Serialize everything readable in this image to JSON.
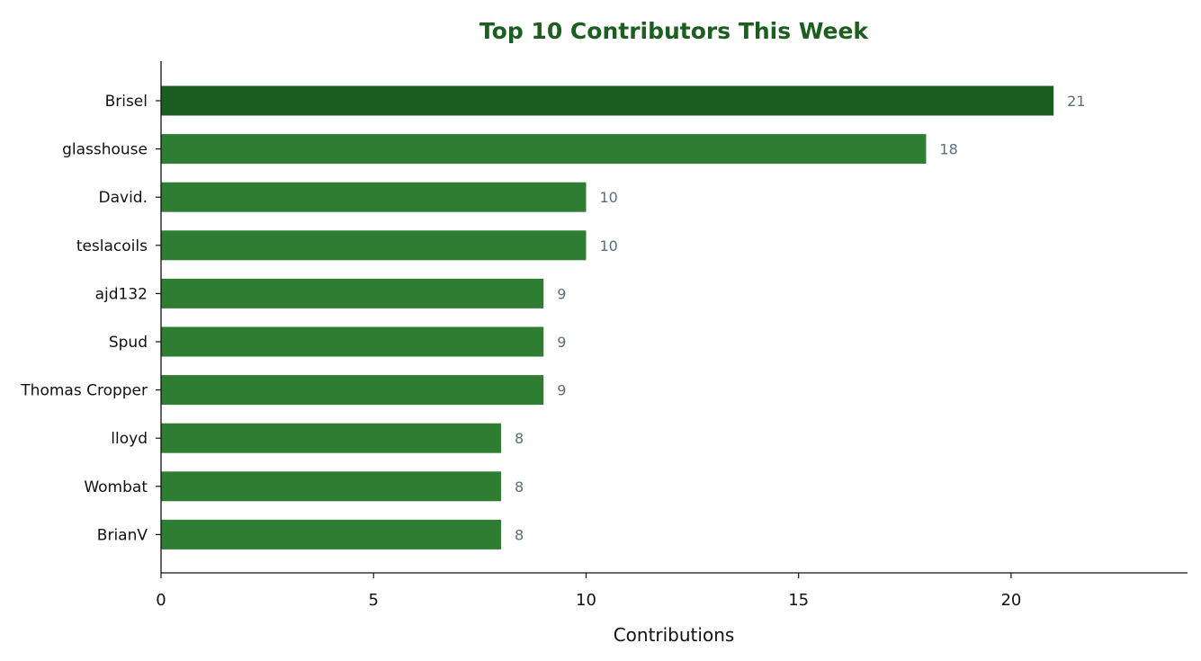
{
  "chart_data": {
    "type": "bar",
    "orientation": "horizontal",
    "title": "Top 10 Contributors This Week",
    "xlabel": "Contributions",
    "ylabel": "",
    "categories": [
      "Brisel",
      "glasshouse",
      "David.",
      "teslacoils",
      "ajd132",
      "Spud",
      "Thomas Cropper",
      "lloyd",
      "Wombat",
      "BrianV"
    ],
    "values": [
      21,
      18,
      10,
      10,
      9,
      9,
      9,
      8,
      8,
      8
    ],
    "xlim": [
      0,
      24.15
    ],
    "xticks": [
      0,
      5,
      10,
      15,
      20
    ],
    "grid": false,
    "legend": "none"
  },
  "colors": {
    "highlight": "#1b5e20",
    "bar": "#2e7d32",
    "title": "#1b5e20",
    "value_label": "#5a6f7f",
    "axis": "#111111"
  }
}
